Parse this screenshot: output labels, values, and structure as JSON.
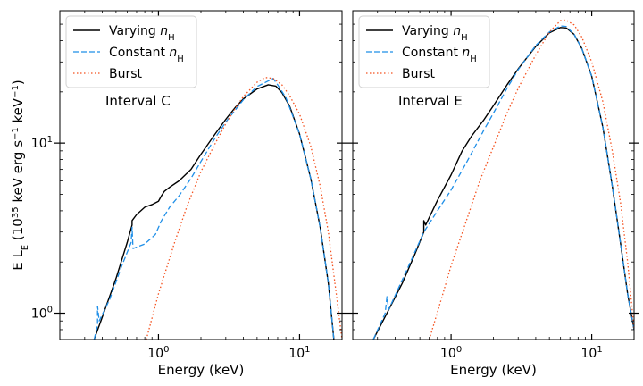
{
  "chart_data": [
    {
      "type": "line",
      "xlabel": "Energy (keV)",
      "ylabel": "E L_E (10^35 keV erg s^-1 keV^-1)",
      "xscale": "log",
      "yscale": "log",
      "xlim": [
        0.2,
        20
      ],
      "ylim": [
        0.7,
        60
      ],
      "x_ticks": [
        {
          "value": 1,
          "mantissa": "10",
          "exp": "0"
        },
        {
          "value": 10,
          "mantissa": "10",
          "exp": "1"
        }
      ],
      "y_ticks": [
        {
          "value": 1,
          "mantissa": "10",
          "exp": "0"
        },
        {
          "value": 10,
          "mantissa": "10",
          "exp": "1"
        }
      ],
      "annotation": "Interval C",
      "legend_position": "top-left",
      "series": [
        {
          "name": "Varying nH",
          "color": "#000000",
          "style": "solid",
          "points": [
            [
              0.35,
              0.7
            ],
            [
              0.4,
              0.95
            ],
            [
              0.5,
              1.6
            ],
            [
              0.6,
              2.6
            ],
            [
              0.65,
              3.3
            ],
            [
              0.65,
              3.5
            ],
            [
              0.7,
              3.8
            ],
            [
              0.8,
              4.2
            ],
            [
              0.9,
              4.35
            ],
            [
              1.0,
              4.55
            ],
            [
              1.05,
              4.9
            ],
            [
              1.1,
              5.2
            ],
            [
              1.2,
              5.5
            ],
            [
              1.4,
              6.0
            ],
            [
              1.7,
              7.0
            ],
            [
              2.0,
              8.6
            ],
            [
              2.5,
              11.2
            ],
            [
              3.0,
              13.8
            ],
            [
              3.5,
              16.2
            ],
            [
              4.0,
              18.2
            ],
            [
              5.0,
              20.8
            ],
            [
              6.0,
              22.0
            ],
            [
              6.8,
              21.6
            ],
            [
              7.5,
              19.8
            ],
            [
              8.5,
              16.5
            ],
            [
              10.0,
              11.3
            ],
            [
              12.0,
              6.2
            ],
            [
              14.0,
              3.2
            ],
            [
              16.0,
              1.5
            ],
            [
              17.5,
              0.7
            ]
          ]
        },
        {
          "name": "Constant nH",
          "color": "#1f8fe8",
          "style": "dashed",
          "points": [
            [
              0.35,
              0.7
            ],
            [
              0.37,
              0.85
            ],
            [
              0.37,
              1.1
            ],
            [
              0.38,
              0.9
            ],
            [
              0.45,
              1.2
            ],
            [
              0.55,
              1.9
            ],
            [
              0.64,
              2.6
            ],
            [
              0.65,
              3.2
            ],
            [
              0.66,
              2.4
            ],
            [
              0.8,
              2.55
            ],
            [
              0.95,
              2.9
            ],
            [
              1.05,
              3.5
            ],
            [
              1.2,
              4.2
            ],
            [
              1.4,
              4.9
            ],
            [
              1.7,
              6.2
            ],
            [
              2.0,
              7.8
            ],
            [
              2.5,
              10.6
            ],
            [
              3.0,
              13.3
            ],
            [
              4.0,
              18.0
            ],
            [
              5.0,
              21.5
            ],
            [
              6.0,
              23.2
            ],
            [
              6.5,
              24.0
            ],
            [
              7.0,
              22.0
            ],
            [
              8.0,
              18.5
            ],
            [
              10.0,
              11.3
            ],
            [
              12.0,
              6.2
            ],
            [
              14.0,
              3.2
            ],
            [
              16.0,
              1.5
            ],
            [
              17.5,
              0.7
            ]
          ]
        },
        {
          "name": "Burst",
          "color": "#f4511e",
          "style": "dotted",
          "points": [
            [
              0.82,
              0.7
            ],
            [
              1.0,
              1.3
            ],
            [
              1.3,
              2.6
            ],
            [
              1.6,
              4.3
            ],
            [
              2.0,
              6.8
            ],
            [
              2.5,
              9.8
            ],
            [
              3.0,
              13.0
            ],
            [
              3.5,
              16.0
            ],
            [
              4.0,
              18.8
            ],
            [
              5.0,
              22.8
            ],
            [
              5.7,
              24.3
            ],
            [
              6.5,
              24.0
            ],
            [
              7.5,
              22.0
            ],
            [
              8.5,
              19.0
            ],
            [
              10.0,
              14.8
            ],
            [
              12.0,
              9.6
            ],
            [
              14.0,
              5.6
            ],
            [
              16.0,
              3.0
            ],
            [
              18.0,
              1.4
            ],
            [
              20.0,
              0.7
            ]
          ]
        }
      ]
    },
    {
      "type": "line",
      "xlabel": "Energy (keV)",
      "ylabel": "",
      "xscale": "log",
      "yscale": "log",
      "xlim": [
        0.2,
        20
      ],
      "ylim": [
        0.7,
        60
      ],
      "x_ticks": [
        {
          "value": 1,
          "mantissa": "10",
          "exp": "0"
        },
        {
          "value": 10,
          "mantissa": "10",
          "exp": "1"
        }
      ],
      "y_ticks": [
        {
          "value": 1,
          "mantissa": "",
          "exp": ""
        },
        {
          "value": 10,
          "mantissa": "",
          "exp": ""
        }
      ],
      "annotation": "Interval E",
      "legend_position": "top-left",
      "series": [
        {
          "name": "Varying nH",
          "color": "#000000",
          "style": "solid",
          "points": [
            [
              0.28,
              0.7
            ],
            [
              0.35,
              1.0
            ],
            [
              0.45,
              1.5
            ],
            [
              0.55,
              2.2
            ],
            [
              0.64,
              3.0
            ],
            [
              0.64,
              3.5
            ],
            [
              0.66,
              3.3
            ],
            [
              0.8,
              4.6
            ],
            [
              1.0,
              6.5
            ],
            [
              1.2,
              9.0
            ],
            [
              1.4,
              11.0
            ],
            [
              1.7,
              13.6
            ],
            [
              2.0,
              16.6
            ],
            [
              2.5,
              22.0
            ],
            [
              3.0,
              27.3
            ],
            [
              4.0,
              37.0
            ],
            [
              5.0,
              44.5
            ],
            [
              6.0,
              47.8
            ],
            [
              6.6,
              47.5
            ],
            [
              7.5,
              43.5
            ],
            [
              8.5,
              36.0
            ],
            [
              10.0,
              24.7
            ],
            [
              12.0,
              12.4
            ],
            [
              14.0,
              5.6
            ],
            [
              16.0,
              2.6
            ],
            [
              18.0,
              1.3
            ],
            [
              20.0,
              0.8
            ]
          ]
        },
        {
          "name": "Constant nH",
          "color": "#1f8fe8",
          "style": "dashed",
          "points": [
            [
              0.28,
              0.7
            ],
            [
              0.34,
              1.0
            ],
            [
              0.35,
              1.25
            ],
            [
              0.36,
              1.05
            ],
            [
              0.5,
              1.9
            ],
            [
              0.64,
              3.0
            ],
            [
              0.8,
              4.0
            ],
            [
              1.0,
              5.3
            ],
            [
              1.3,
              7.8
            ],
            [
              1.7,
              11.8
            ],
            [
              2.0,
              15.0
            ],
            [
              2.5,
              21.0
            ],
            [
              3.0,
              27.0
            ],
            [
              4.0,
              37.5
            ],
            [
              5.0,
              45.0
            ],
            [
              6.0,
              48.8
            ],
            [
              6.6,
              48.5
            ],
            [
              7.5,
              43.5
            ],
            [
              8.5,
              36.0
            ],
            [
              10.0,
              24.7
            ],
            [
              12.0,
              12.4
            ],
            [
              14.0,
              5.6
            ],
            [
              16.0,
              2.6
            ],
            [
              18.0,
              1.3
            ],
            [
              20.0,
              0.8
            ]
          ]
        },
        {
          "name": "Burst",
          "color": "#f4511e",
          "style": "dotted",
          "points": [
            [
              0.7,
              0.7
            ],
            [
              0.85,
              1.2
            ],
            [
              1.0,
              1.9
            ],
            [
              1.3,
              3.6
            ],
            [
              1.6,
              6.0
            ],
            [
              2.0,
              9.5
            ],
            [
              2.5,
              15.0
            ],
            [
              3.0,
              21.0
            ],
            [
              4.0,
              33.0
            ],
            [
              5.0,
              45.0
            ],
            [
              6.0,
              52.5
            ],
            [
              6.5,
              53.0
            ],
            [
              7.5,
              49.5
            ],
            [
              8.5,
              42.0
            ],
            [
              10.0,
              30.0
            ],
            [
              12.0,
              17.5
            ],
            [
              14.0,
              9.0
            ],
            [
              16.0,
              4.5
            ],
            [
              18.0,
              2.0
            ],
            [
              20.0,
              0.8
            ]
          ]
        }
      ]
    }
  ]
}
